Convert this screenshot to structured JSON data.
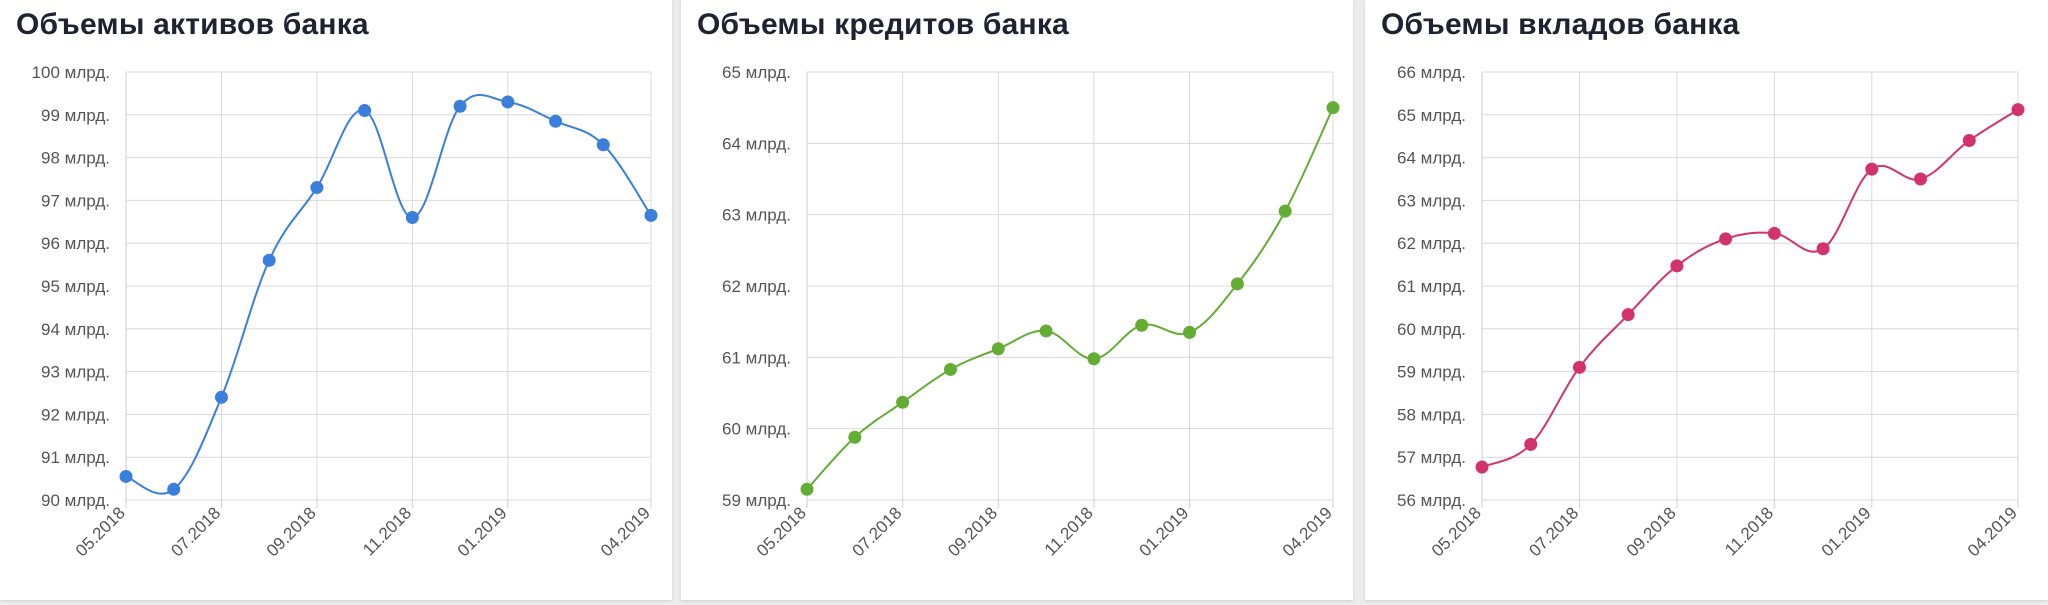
{
  "charts": [
    {
      "title": "Объемы активов банка",
      "color": "#3b7fdc",
      "y_ticks": [
        "90 млрд.",
        "91 млрд.",
        "92 млрд.",
        "93 млрд.",
        "94 млрд.",
        "95 млрд.",
        "96 млрд.",
        "97 млрд.",
        "98 млрд.",
        "99 млрд.",
        "100 млрд."
      ],
      "x_ticks": [
        "05.2018",
        "07.2018",
        "09.2018",
        "11.2018",
        "01.2019",
        "04.2019"
      ]
    },
    {
      "title": "Объемы кредитов банка",
      "color": "#63ad34",
      "y_ticks": [
        "59 млрд.",
        "60 млрд.",
        "61 млрд.",
        "62 млрд.",
        "63 млрд.",
        "64 млрд.",
        "65 млрд."
      ],
      "x_ticks": [
        "05.2018",
        "07.2018",
        "09.2018",
        "11.2018",
        "01.2019",
        "04.2019"
      ]
    },
    {
      "title": "Объемы вкладов банка",
      "color": "#d2336e",
      "y_ticks": [
        "56 млрд.",
        "57 млрд.",
        "58 млрд.",
        "59 млрд.",
        "60 млрд.",
        "61 млрд.",
        "62 млрд.",
        "63 млрд.",
        "64 млрд.",
        "65 млрд.",
        "66 млрд."
      ],
      "x_ticks": [
        "05.2018",
        "07.2018",
        "09.2018",
        "11.2018",
        "01.2019",
        "04.2019"
      ]
    }
  ],
  "chart_data": [
    {
      "type": "line",
      "title": "Объемы активов банка",
      "x": [
        "05.2018",
        "06.2018",
        "07.2018",
        "08.2018",
        "09.2018",
        "10.2018",
        "11.2018",
        "12.2018",
        "01.2019",
        "02.2019",
        "03.2019",
        "04.2019"
      ],
      "x_tick_labels": [
        "05.2018",
        "07.2018",
        "09.2018",
        "11.2018",
        "01.2019",
        "04.2019"
      ],
      "series": [
        {
          "values": [
            90.55,
            90.25,
            92.4,
            95.6,
            97.3,
            99.1,
            96.6,
            99.2,
            99.3,
            98.85,
            98.3,
            96.65
          ]
        }
      ],
      "ylim": [
        90,
        100
      ],
      "y_unit": "млрд.",
      "grid": true,
      "legend": "none"
    },
    {
      "type": "line",
      "title": "Объемы кредитов банка",
      "x": [
        "05.2018",
        "06.2018",
        "07.2018",
        "08.2018",
        "09.2018",
        "10.2018",
        "11.2018",
        "12.2018",
        "01.2019",
        "02.2019",
        "03.2019",
        "04.2019"
      ],
      "x_tick_labels": [
        "05.2018",
        "07.2018",
        "09.2018",
        "11.2018",
        "01.2019",
        "04.2019"
      ],
      "series": [
        {
          "values": [
            59.15,
            59.88,
            60.37,
            60.83,
            61.12,
            61.37,
            60.98,
            61.45,
            61.35,
            62.03,
            63.05,
            64.5
          ]
        }
      ],
      "ylim": [
        59,
        65
      ],
      "y_unit": "млрд.",
      "grid": true,
      "legend": "none"
    },
    {
      "type": "line",
      "title": "Объемы вкладов банка",
      "x": [
        "05.2018",
        "06.2018",
        "07.2018",
        "08.2018",
        "09.2018",
        "10.2018",
        "11.2018",
        "12.2018",
        "01.2019",
        "02.2019",
        "03.2019",
        "04.2019"
      ],
      "x_tick_labels": [
        "05.2018",
        "07.2018",
        "09.2018",
        "11.2018",
        "01.2019",
        "04.2019"
      ],
      "series": [
        {
          "values": [
            56.77,
            57.3,
            59.1,
            60.33,
            61.47,
            62.1,
            62.23,
            61.87,
            63.73,
            63.5,
            64.4,
            65.12
          ]
        }
      ],
      "ylim": [
        56,
        66
      ],
      "y_unit": "млрд.",
      "grid": true,
      "legend": "none"
    }
  ]
}
